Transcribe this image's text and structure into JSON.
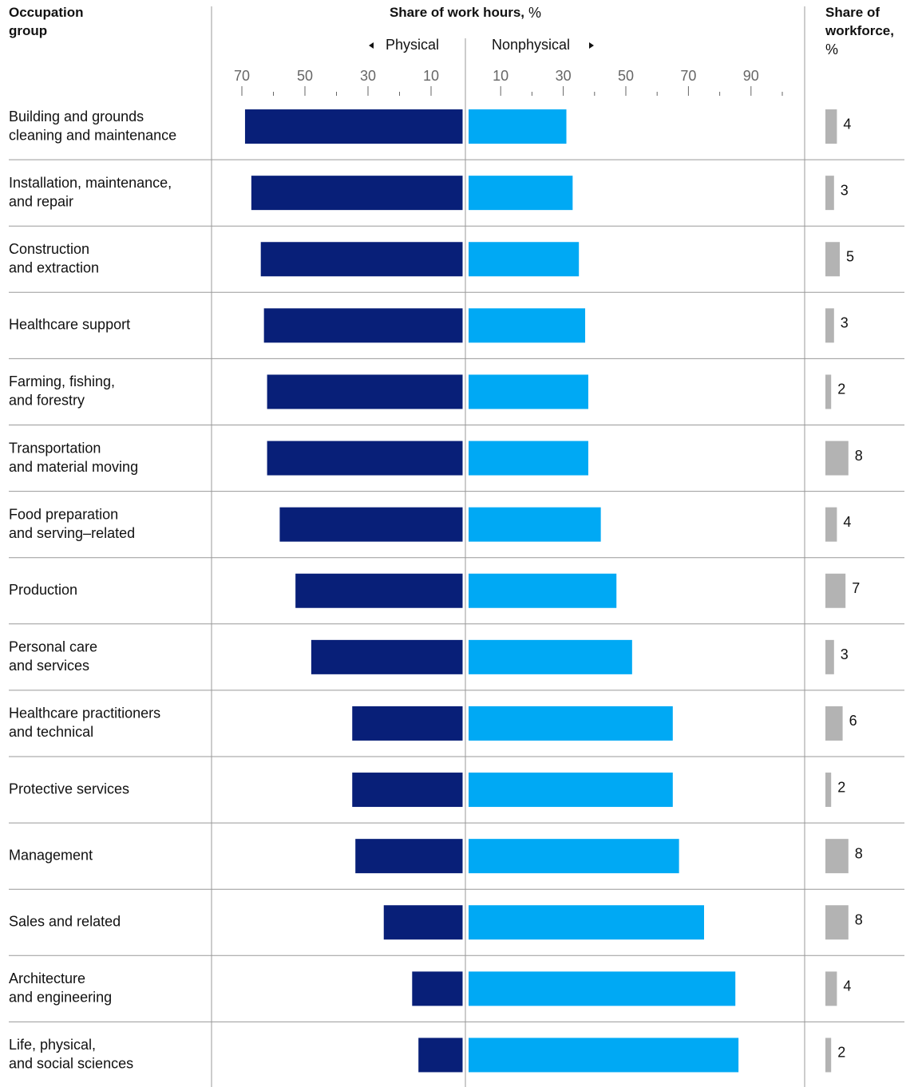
{
  "chart_data": {
    "type": "butterfly_bar",
    "title": "Share of work hours,",
    "title_unit": "%",
    "category_header": "Occupation\ngroup",
    "left_label": "Physical",
    "right_label": "Nonphysical",
    "side_title": "Share of\nworkforce,",
    "side_unit": "%",
    "categories": [
      "Building and grounds\ncleaning and maintenance",
      "Installation, maintenance,\nand repair",
      "Construction\nand extraction",
      "Healthcare support",
      "Farming, fishing,\nand forestry",
      "Transportation\nand material moving",
      "Food preparation\nand serving–related",
      "Production",
      "Personal care\nand services",
      "Healthcare practitioners\nand technical",
      "Protective services",
      "Management",
      "Sales and related",
      "Architecture\nand engineering",
      "Life, physical,\nand social sciences"
    ],
    "series": [
      {
        "name": "Physical",
        "color": "#081f78",
        "values": [
          69,
          67,
          64,
          63,
          62,
          62,
          58,
          53,
          48,
          35,
          35,
          34,
          25,
          16,
          14
        ]
      },
      {
        "name": "Nonphysical",
        "color": "#00a9f4",
        "values": [
          31,
          33,
          35,
          37,
          38,
          38,
          42,
          47,
          52,
          65,
          65,
          67,
          75,
          85,
          86
        ]
      }
    ],
    "workforce": {
      "color": "#b3b3b3",
      "values": [
        4,
        3,
        5,
        3,
        2,
        8,
        4,
        7,
        3,
        6,
        2,
        8,
        8,
        4,
        2
      ]
    },
    "left_xlim": [
      0,
      70
    ],
    "left_xticks": [
      70,
      50,
      30,
      10
    ],
    "left_minor_xticks": [
      60,
      40,
      20
    ],
    "right_xlim": [
      0,
      100
    ],
    "right_xticks": [
      10,
      30,
      50,
      70,
      90
    ],
    "right_minor_xticks": [
      20,
      40,
      60,
      80,
      100
    ]
  }
}
